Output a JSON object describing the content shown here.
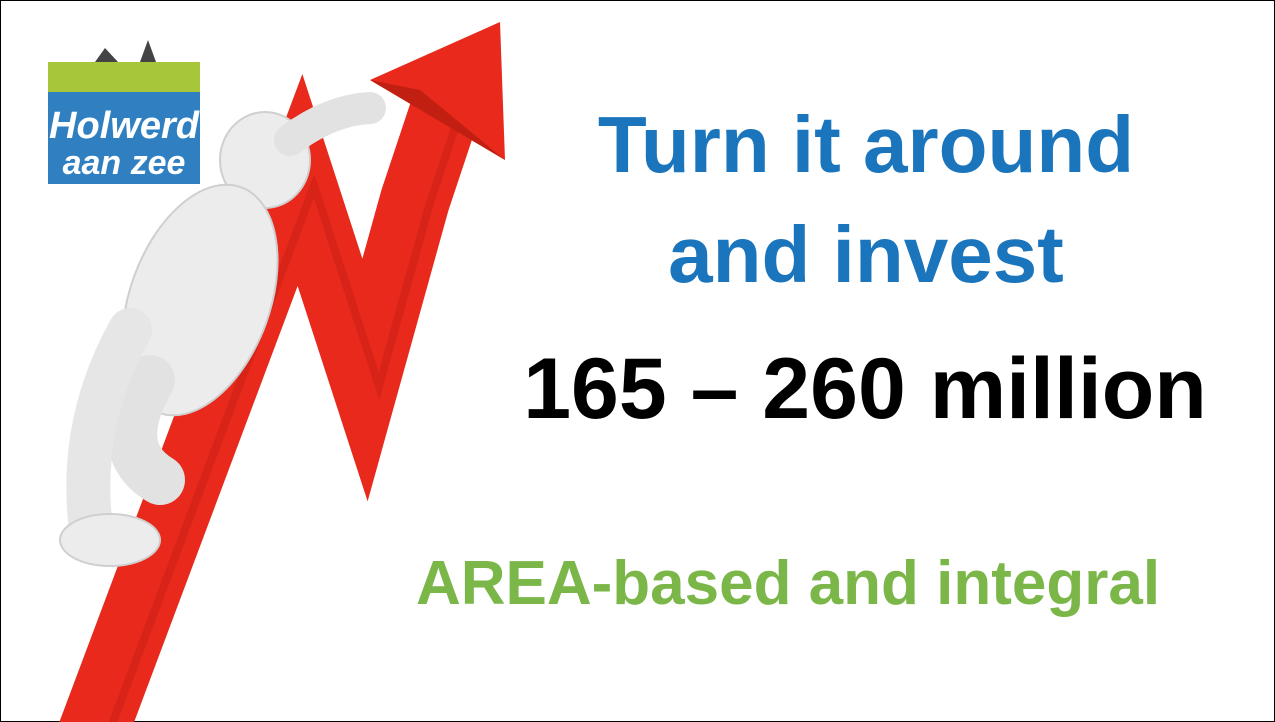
{
  "logo": {
    "line1": "Holwerd",
    "line2": "aan zee"
  },
  "headline": {
    "lines": [
      "Turn it around",
      "and invest"
    ]
  },
  "amount": "165 – 260 million",
  "tagline": "AREA-based and integral"
}
